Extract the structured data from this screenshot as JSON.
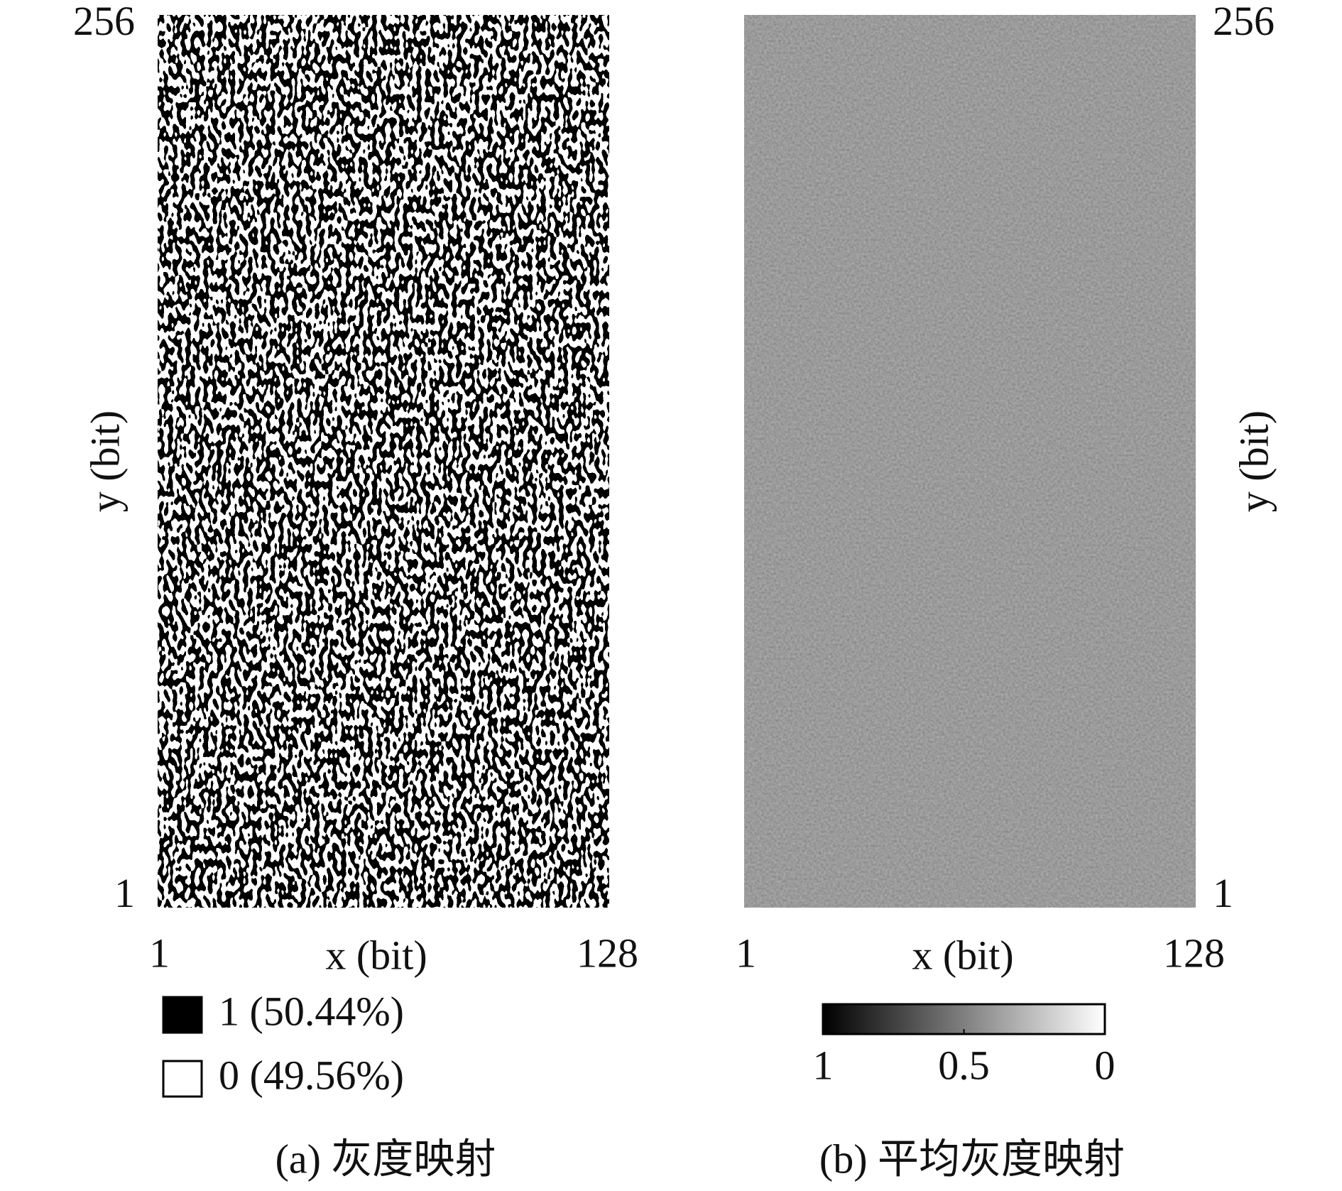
{
  "chart_data": [
    {
      "type": "heatmap",
      "xlabel": "x (bit)",
      "ylabel": "y (bit)",
      "xlim": [
        0.5,
        128.5
      ],
      "ylim": [
        0.5,
        256.5
      ],
      "xticks": [
        1,
        128
      ],
      "yticks": [
        1,
        256
      ],
      "ytick_side": "left",
      "colormap": "binary",
      "legend": [
        {
          "label": "1 (50.44%)",
          "color": "#000000"
        },
        {
          "label": "0 (49.56%)",
          "color": "#ffffff"
        }
      ],
      "caption": "(a) 灰度映射"
    },
    {
      "type": "heatmap",
      "xlabel": "x (bit)",
      "ylabel": "y (bit)",
      "xlim": [
        0.5,
        128.5
      ],
      "ylim": [
        0.5,
        256.5
      ],
      "xticks": [
        1,
        128
      ],
      "yticks": [
        1,
        256
      ],
      "ytick_side": "right",
      "colormap": "gray",
      "colorbar": {
        "lim": [
          1,
          0
        ],
        "ticks": [
          1,
          0.5,
          0
        ]
      },
      "caption": "(b) 平均灰度映射"
    }
  ]
}
